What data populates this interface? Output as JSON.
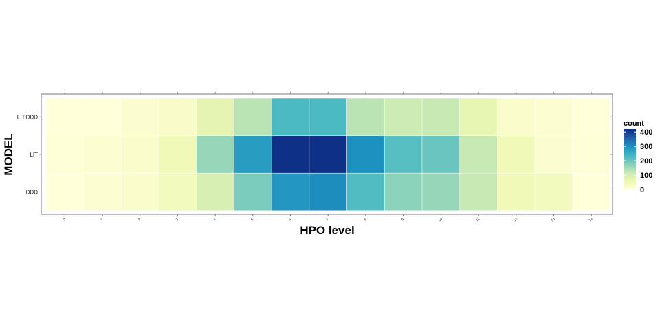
{
  "chart_data": {
    "type": "heatmap",
    "xlabel": "HPO level",
    "ylabel": "MODEL",
    "x_categories": [
      "0",
      "1",
      "2",
      "3",
      "4",
      "5",
      "6",
      "7",
      "8",
      "9",
      "10",
      "11",
      "12",
      "13",
      "14"
    ],
    "y_categories": [
      "LIT;DDD",
      "LIT",
      "DDD"
    ],
    "values": [
      [
        0,
        0,
        15,
        25,
        75,
        130,
        230,
        230,
        130,
        110,
        120,
        70,
        20,
        10,
        0
      ],
      [
        5,
        10,
        20,
        50,
        160,
        280,
        415,
        415,
        300,
        220,
        200,
        120,
        50,
        15,
        5
      ],
      [
        0,
        10,
        20,
        40,
        95,
        185,
        290,
        305,
        225,
        170,
        160,
        120,
        50,
        40,
        0
      ]
    ],
    "legend": {
      "title": "count",
      "ticks": [
        "400",
        "300",
        "200",
        "100",
        "0"
      ],
      "range": [
        0,
        420
      ]
    },
    "colorscale": [
      "#ffffd9",
      "#edf8b1",
      "#c7e9b4",
      "#7fcdbb",
      "#41b6c4",
      "#1d91c0",
      "#225ea8",
      "#0c2c84"
    ],
    "grid": true,
    "legend_position": "right"
  }
}
